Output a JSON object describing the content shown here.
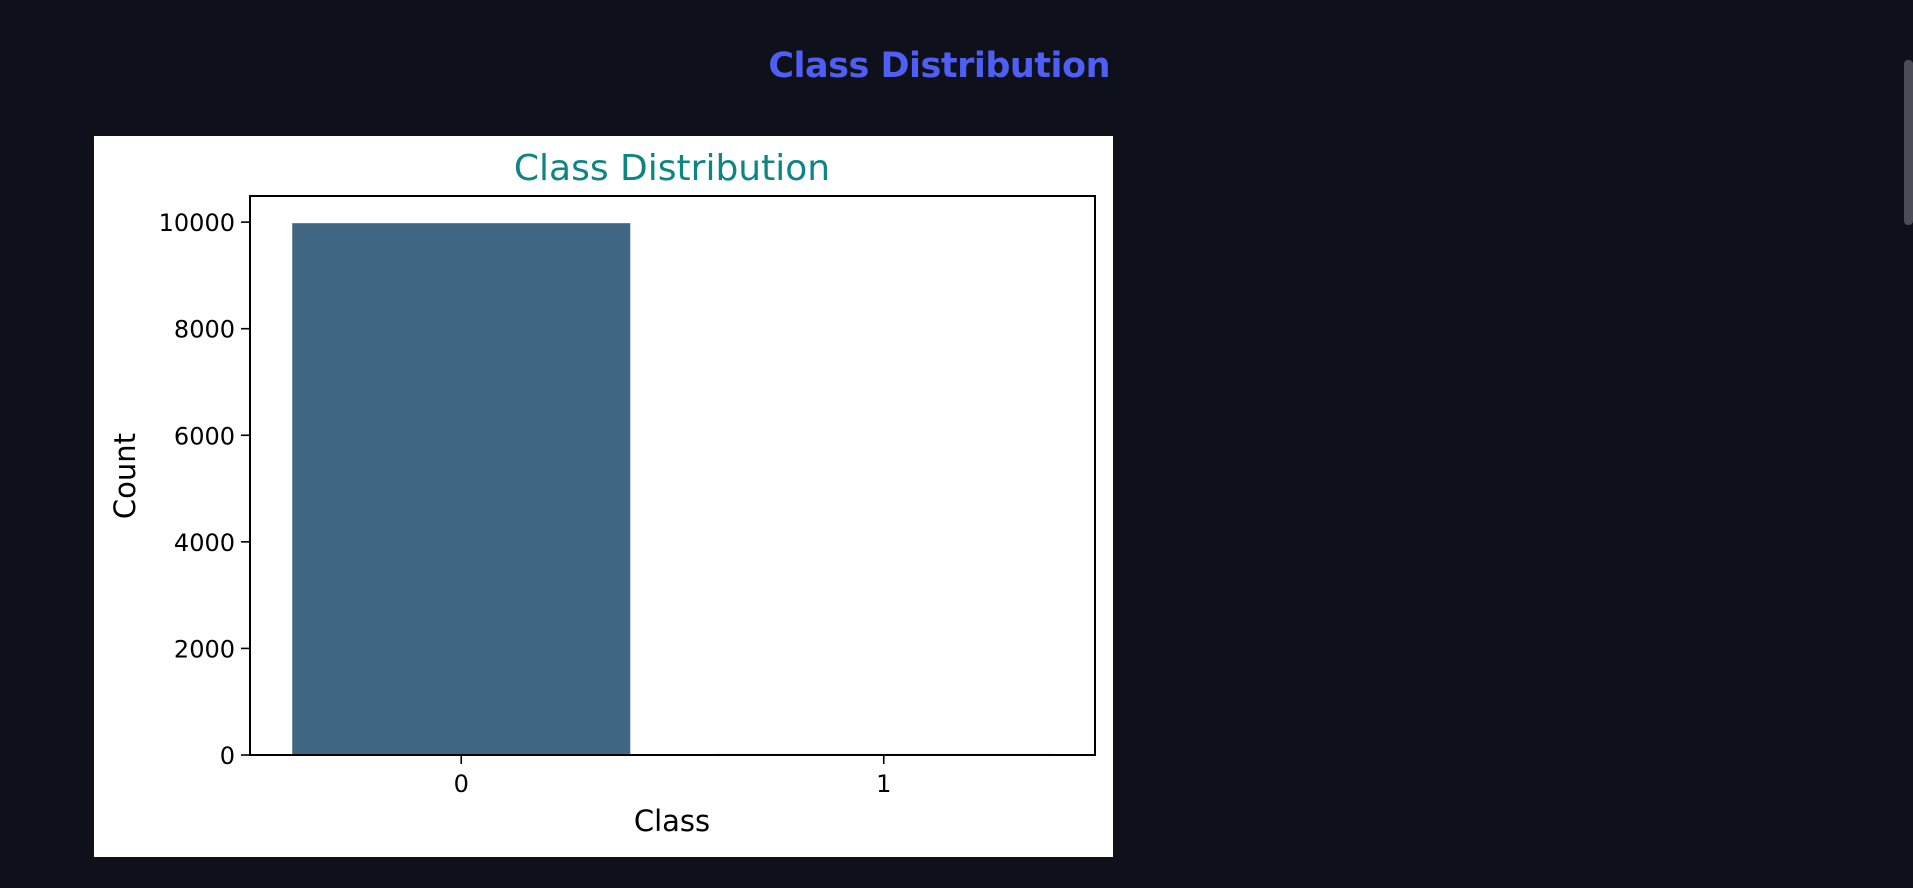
{
  "page": {
    "heading": "Class Distribution"
  },
  "colors": {
    "background": "#0e111a",
    "heading": "#4f5ff5",
    "chart_title": "#0e8585",
    "bar": "#3f6783"
  },
  "chart_data": {
    "type": "bar",
    "title": "Class Distribution",
    "xlabel": "Class",
    "ylabel": "Count",
    "categories": [
      "0",
      "1"
    ],
    "values": [
      9980,
      20
    ],
    "ylim": [
      0,
      10490
    ],
    "yticks": [
      0,
      2000,
      4000,
      6000,
      8000,
      10000
    ],
    "grid": false
  }
}
